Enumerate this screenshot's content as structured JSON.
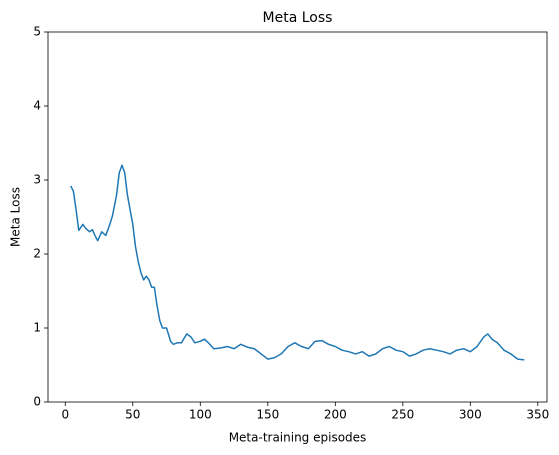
{
  "chart_data": {
    "type": "line",
    "title": "Meta Loss",
    "x_label": "Meta-training episodes",
    "y_label": "Meta Loss",
    "series": [
      {
        "name": "Meta Loss",
        "color": "#1f77b4",
        "x": [
          4,
          6,
          8,
          10,
          13,
          15,
          18,
          20,
          22,
          24,
          27,
          30,
          33,
          35,
          38,
          40,
          42,
          44,
          46,
          48,
          50,
          52,
          54,
          56,
          58,
          60,
          62,
          64,
          66,
          68,
          70,
          72,
          75,
          78,
          80,
          83,
          86,
          90,
          93,
          96,
          100,
          103,
          106,
          110,
          115,
          120,
          125,
          130,
          135,
          140,
          145,
          150,
          155,
          160,
          165,
          170,
          175,
          180,
          185,
          190,
          195,
          200,
          205,
          210,
          215,
          220,
          225,
          230,
          235,
          240,
          245,
          250,
          255,
          260,
          265,
          270,
          275,
          280,
          285,
          290,
          295,
          300,
          305,
          310,
          313,
          316,
          320,
          325,
          330,
          335,
          340
        ],
        "values": [
          2.92,
          2.85,
          2.6,
          2.32,
          2.4,
          2.35,
          2.3,
          2.33,
          2.25,
          2.18,
          2.3,
          2.25,
          2.4,
          2.52,
          2.8,
          3.1,
          3.2,
          3.1,
          2.8,
          2.6,
          2.4,
          2.1,
          1.9,
          1.75,
          1.65,
          1.7,
          1.65,
          1.55,
          1.55,
          1.3,
          1.1,
          1.0,
          1.0,
          0.82,
          0.78,
          0.8,
          0.8,
          0.92,
          0.88,
          0.8,
          0.82,
          0.85,
          0.8,
          0.72,
          0.73,
          0.75,
          0.72,
          0.78,
          0.74,
          0.72,
          0.65,
          0.58,
          0.6,
          0.65,
          0.75,
          0.8,
          0.75,
          0.72,
          0.82,
          0.83,
          0.78,
          0.75,
          0.7,
          0.68,
          0.65,
          0.68,
          0.62,
          0.65,
          0.72,
          0.75,
          0.7,
          0.68,
          0.62,
          0.65,
          0.7,
          0.72,
          0.7,
          0.68,
          0.65,
          0.7,
          0.72,
          0.68,
          0.75,
          0.88,
          0.92,
          0.85,
          0.8,
          0.7,
          0.65,
          0.58,
          0.57
        ]
      }
    ],
    "xlim": [
      -12.8,
      356.8
    ],
    "xticks": [
      0,
      50,
      100,
      150,
      200,
      250,
      300,
      350
    ],
    "ylim": [
      0,
      5
    ],
    "yticks": [
      0,
      1,
      2,
      3,
      4,
      5
    ]
  }
}
